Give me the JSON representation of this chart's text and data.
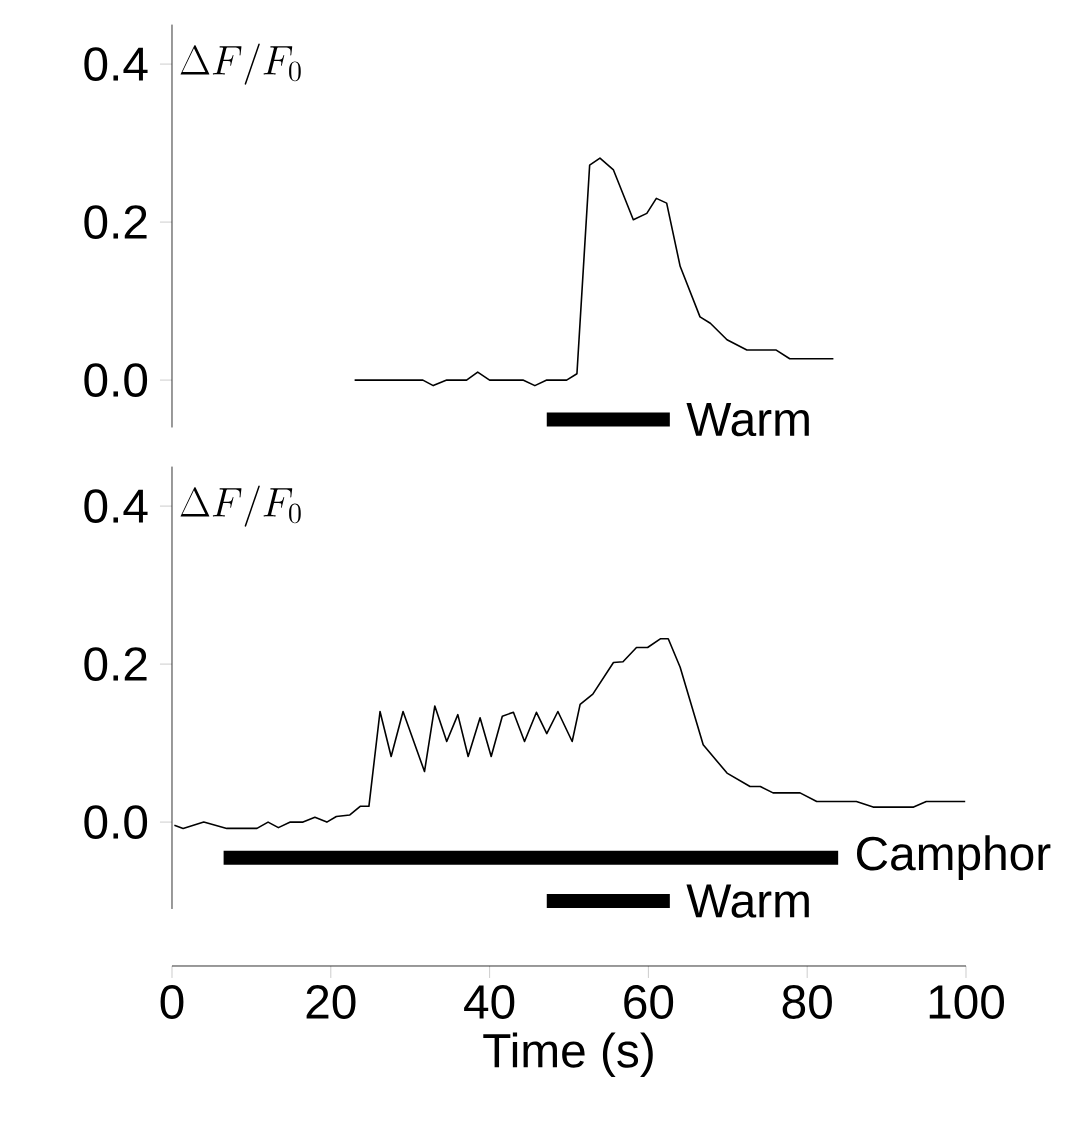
{
  "chart_data": [
    {
      "type": "line",
      "ylabel": "\\Delta F/F_{0}",
      "xlim": [
        0,
        100
      ],
      "ylim": [
        -0.06,
        0.45
      ],
      "yticks": [
        {
          "value": 0,
          "label": "0.0"
        },
        {
          "value": 0.2,
          "label": "0.2"
        },
        {
          "value": 0.4,
          "label": "0.4"
        }
      ],
      "tick_labels": "y",
      "series": [
        {
          "color": "#000000",
          "x": [
            23.0,
            31.6,
            32.9,
            34.6,
            37.1,
            38.5,
            40.0,
            44.2,
            45.7,
            47.2,
            49.7,
            51.0,
            52.6,
            53.9,
            55.6,
            58.1,
            59.8,
            61.0,
            62.3,
            64.0,
            66.5,
            67.8,
            69.9,
            72.4,
            76.1,
            77.8,
            83.3
          ],
          "values": [
            0,
            0,
            -0.007,
            0,
            0,
            0.01,
            0,
            0,
            -0.007,
            0,
            0,
            0.008,
            0.272,
            0.281,
            0.266,
            0.203,
            0.211,
            0.23,
            0.224,
            0.144,
            0.08,
            0.072,
            0.051,
            0.038,
            0.038,
            0.027,
            0.027
          ]
        },
        {
          "name": "Warm",
          "color": "#000000",
          "x": [
            47.2,
            62.7
          ],
          "values": [
            -0.05,
            -0.05
          ]
        }
      ]
    },
    {
      "type": "line",
      "ylabel": "\\Delta F/F_{0}",
      "xlabel": "Time (s)",
      "xlim": [
        0,
        100
      ],
      "xticks": [
        0,
        20,
        40,
        60,
        80,
        100
      ],
      "ylim": [
        -0.11,
        0.45
      ],
      "yticks": [
        {
          "value": 0,
          "label": "0.0"
        },
        {
          "value": 0.2,
          "label": "0.2"
        },
        {
          "value": 0.4,
          "label": "0.4"
        }
      ],
      "series": [
        {
          "color": "#000000",
          "x": [
            0.3,
            1.4,
            4.0,
            6.9,
            10.7,
            12.1,
            13.4,
            14.9,
            16.5,
            18.0,
            19.5,
            20.7,
            22.4,
            23.7,
            24.8,
            26.2,
            27.6,
            29.1,
            31.8,
            33.1,
            34.6,
            36.0,
            37.3,
            38.8,
            40.2,
            41.6,
            43.0,
            44.4,
            45.9,
            47.2,
            48.6,
            50.4,
            51.4,
            53.0,
            55.6,
            56.8,
            58.5,
            59.9,
            61.5,
            62.5,
            64.0,
            66.9,
            69.9,
            72.8,
            74.1,
            75.7,
            79.1,
            81.2,
            86.2,
            88.3,
            93.4,
            95.0,
            99.9
          ],
          "values": [
            -0.004,
            -0.008,
            0,
            -0.008,
            -0.008,
            0,
            -0.007,
            0,
            0,
            0.006,
            0,
            0.007,
            0.009,
            0.02,
            0.02,
            0.14,
            0.083,
            0.14,
            0.064,
            0.147,
            0.102,
            0.136,
            0.083,
            0.132,
            0.083,
            0.134,
            0.139,
            0.102,
            0.139,
            0.112,
            0.14,
            0.102,
            0.149,
            0.162,
            0.202,
            0.203,
            0.221,
            0.221,
            0.232,
            0.232,
            0.196,
            0.098,
            0.062,
            0.045,
            0.045,
            0.037,
            0.037,
            0.026,
            0.026,
            0.019,
            0.019,
            0.026,
            0.026
          ]
        },
        {
          "name": "Camphor",
          "color": "#000000",
          "x": [
            6.5,
            83.9
          ],
          "values": [
            -0.045,
            -0.045
          ]
        },
        {
          "name": "Warm",
          "color": "#000000",
          "x": [
            47.2,
            62.7
          ],
          "values": [
            -0.1,
            -0.1
          ]
        }
      ]
    }
  ]
}
